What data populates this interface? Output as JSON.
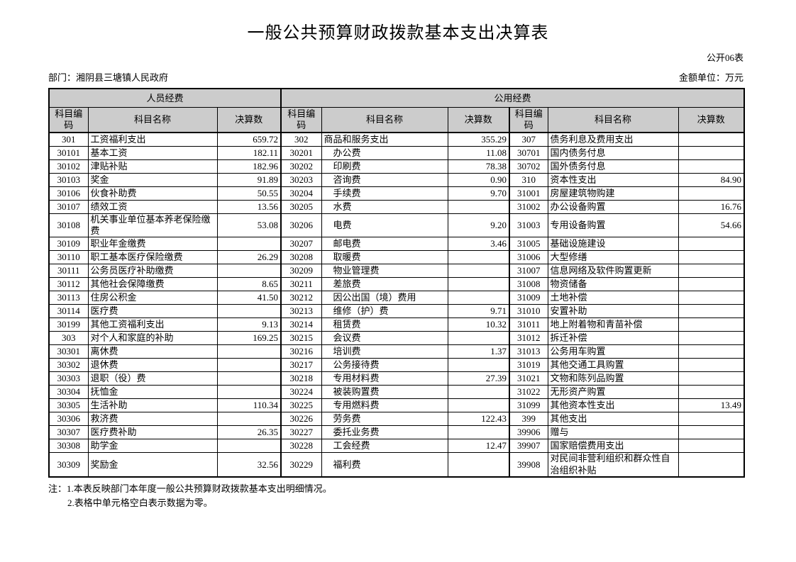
{
  "header": {
    "title": "一般公共预算财政拨款基本支出决算表",
    "doc_label": "公开06表",
    "department_label": "部门：湘阴县三塘镇人民政府",
    "unit_label": "金额单位：万元"
  },
  "table": {
    "group_headers": [
      {
        "label": "人员经费",
        "span": 3
      },
      {
        "label": "公用经费",
        "span": 6
      }
    ],
    "column_headers": [
      "科目编码",
      "科目名称",
      "决算数",
      "科目编码",
      "科目名称",
      "决算数",
      "科目编码",
      "科目名称",
      "决算数"
    ],
    "rows": [
      [
        "301",
        "工资福利支出",
        "659.72",
        "302",
        "商品和服务支出",
        "355.29",
        "307",
        "债务利息及费用支出",
        ""
      ],
      [
        "30101",
        "基本工资",
        "182.11",
        "30201",
        "　办公费",
        "11.08",
        "30701",
        "国内债务付息",
        ""
      ],
      [
        "30102",
        "津贴补贴",
        "182.96",
        "30202",
        "　印刷费",
        "78.38",
        "30702",
        "国外债务付息",
        ""
      ],
      [
        "30103",
        "奖金",
        "91.89",
        "30203",
        "　咨询费",
        "0.90",
        "310",
        "资本性支出",
        "84.90"
      ],
      [
        "30106",
        "伙食补助费",
        "50.55",
        "30204",
        "　手续费",
        "9.70",
        "31001",
        "房屋建筑物购建",
        ""
      ],
      [
        "30107",
        "绩效工资",
        "13.56",
        "30205",
        "　水费",
        "",
        "31002",
        "办公设备购置",
        "16.76"
      ],
      [
        "30108",
        "机关事业单位基本养老保险缴费",
        "53.08",
        "30206",
        "　电费",
        "9.20",
        "31003",
        "专用设备购置",
        "54.66"
      ],
      [
        "30109",
        "职业年金缴费",
        "",
        "30207",
        "　邮电费",
        "3.46",
        "31005",
        "基础设施建设",
        ""
      ],
      [
        "30110",
        "职工基本医疗保险缴费",
        "26.29",
        "30208",
        "　取暖费",
        "",
        "31006",
        "大型修缮",
        ""
      ],
      [
        "30111",
        "公务员医疗补助缴费",
        "",
        "30209",
        "　物业管理费",
        "",
        "31007",
        "信息网络及软件购置更新",
        ""
      ],
      [
        "30112",
        "其他社会保障缴费",
        "8.65",
        "30211",
        "　差旅费",
        "",
        "31008",
        "物资储备",
        ""
      ],
      [
        "30113",
        "住房公积金",
        "41.50",
        "30212",
        "　因公出国（境）费用",
        "",
        "31009",
        "土地补偿",
        ""
      ],
      [
        "30114",
        "医疗费",
        "",
        "30213",
        "　维修（护）费",
        "9.71",
        "31010",
        "安置补助",
        ""
      ],
      [
        "30199",
        "其他工资福利支出",
        "9.13",
        "30214",
        "　租赁费",
        "10.32",
        "31011",
        "地上附着物和青苗补偿",
        ""
      ],
      [
        "303",
        "对个人和家庭的补助",
        "169.25",
        "30215",
        "　会议费",
        "",
        "31012",
        "拆迁补偿",
        ""
      ],
      [
        "30301",
        "离休费",
        "",
        "30216",
        "　培训费",
        "1.37",
        "31013",
        "公务用车购置",
        ""
      ],
      [
        "30302",
        "退休费",
        "",
        "30217",
        "　公务接待费",
        "",
        "31019",
        "其他交通工具购置",
        ""
      ],
      [
        "30303",
        "退职（役）费",
        "",
        "30218",
        "　专用材料费",
        "27.39",
        "31021",
        "文物和陈列品购置",
        ""
      ],
      [
        "30304",
        "抚恤金",
        "",
        "30224",
        "　被装购置费",
        "",
        "31022",
        "无形资产购置",
        ""
      ],
      [
        "30305",
        "生活补助",
        "110.34",
        "30225",
        "　专用燃料费",
        "",
        "31099",
        "其他资本性支出",
        "13.49"
      ],
      [
        "30306",
        "救济费",
        "",
        "30226",
        "　劳务费",
        "122.43",
        "399",
        "其他支出",
        ""
      ],
      [
        "30307",
        "医疗费补助",
        "26.35",
        "30227",
        "　委托业务费",
        "",
        "39906",
        "赠与",
        ""
      ],
      [
        "30308",
        "助学金",
        "",
        "30228",
        "　工会经费",
        "12.47",
        "39907",
        "国家赔偿费用支出",
        ""
      ],
      [
        "30309",
        "奖励金",
        "32.56",
        "30229",
        "　福利费",
        "",
        "39908",
        "对民间非营利组织和群众性自治组织补贴",
        ""
      ]
    ]
  },
  "notes": {
    "line1": "注：1.本表反映部门本年度一般公共预算财政拨款基本支出明细情况。",
    "line2": "2.表格中单元格空白表示数据为零。"
  },
  "colors": {
    "header_bg": "#cccccc",
    "border": "#000000"
  }
}
